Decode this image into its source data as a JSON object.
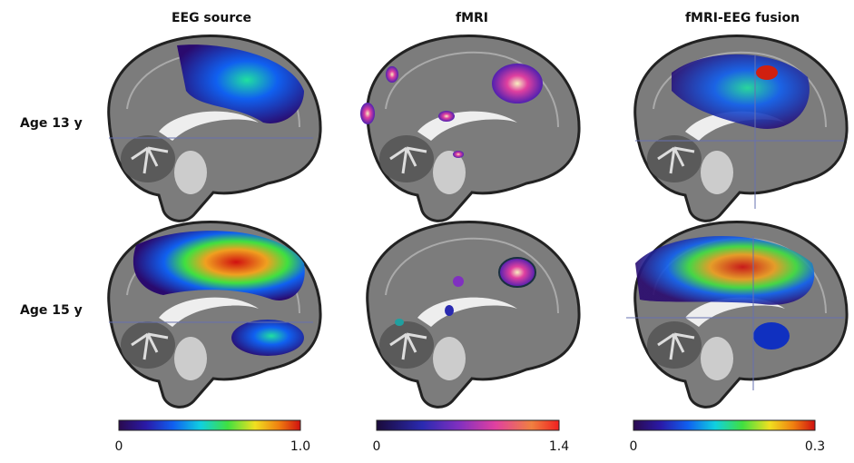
{
  "figure": {
    "columns": [
      "EEG source",
      "fMRI",
      "fMRI-EEG fusion"
    ],
    "rows": [
      "Age 13 y",
      "Age 15 y"
    ],
    "colorbars": [
      {
        "min": "0",
        "max": "1.0"
      },
      {
        "min": "0",
        "max": "1.4"
      },
      {
        "min": "0",
        "max": "0.3"
      }
    ]
  }
}
